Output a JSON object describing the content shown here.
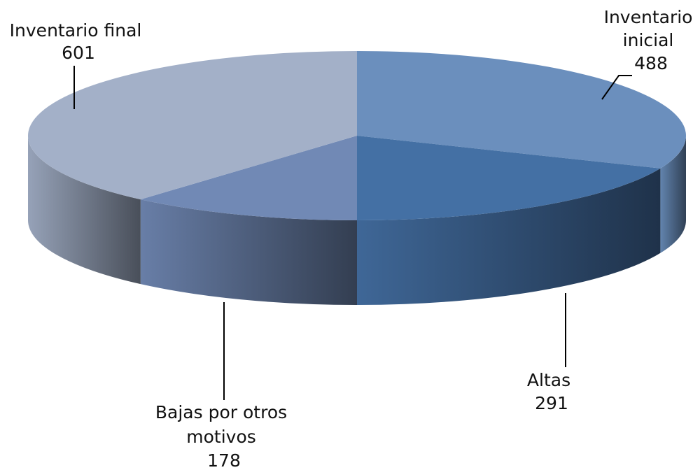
{
  "chart_data": {
    "type": "pie",
    "style": "3d",
    "categories": [
      "Inventario inicial",
      "Altas",
      "Bajas por otros motivos",
      "Inventario final"
    ],
    "values": [
      488,
      291,
      178,
      601
    ],
    "colors": [
      "#6b8fbd",
      "#4470a4",
      "#7189b5",
      "#a3b0c8"
    ],
    "labels": [
      {
        "lines": [
          "Inventario",
          "inicial"
        ],
        "value": "488"
      },
      {
        "lines": [
          "Altas"
        ],
        "value": "291"
      },
      {
        "lines": [
          "Bajas por otros",
          "motivos"
        ],
        "value": "178"
      },
      {
        "lines": [
          "Inventario final"
        ],
        "value": "601"
      }
    ]
  }
}
